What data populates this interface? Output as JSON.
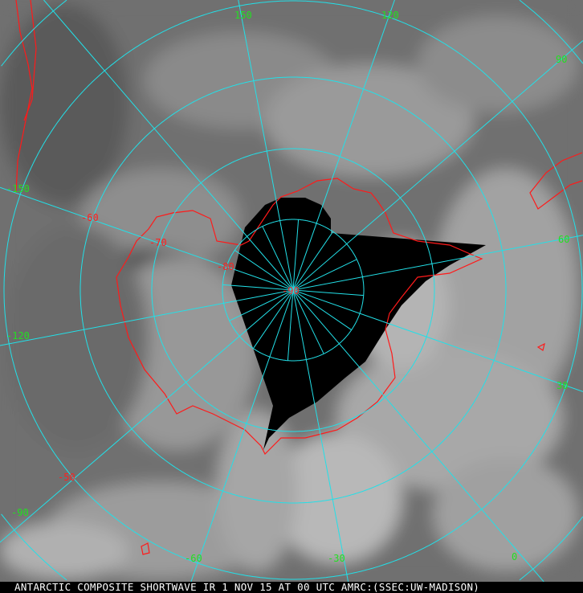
{
  "caption": "ANTARCTIC COMPOSITE SHORTWAVE IR 1 NOV 15 AT 00 UTC AMRC:(SSEC:UW-MADISON)",
  "colors": {
    "grid": "#22e0e8",
    "coastline": "#ff1a1a",
    "longitude_labels": "#22e022",
    "latitude_labels": "#ff2020",
    "no_data": "#000000"
  },
  "longitude_labels": [
    "150",
    "120",
    "90",
    "60",
    "30",
    "0",
    "-30",
    "-60",
    "-90",
    "-120",
    "-150"
  ],
  "latitude_labels": [
    "-50",
    "-60",
    "-70",
    "-80",
    "-90"
  ]
}
